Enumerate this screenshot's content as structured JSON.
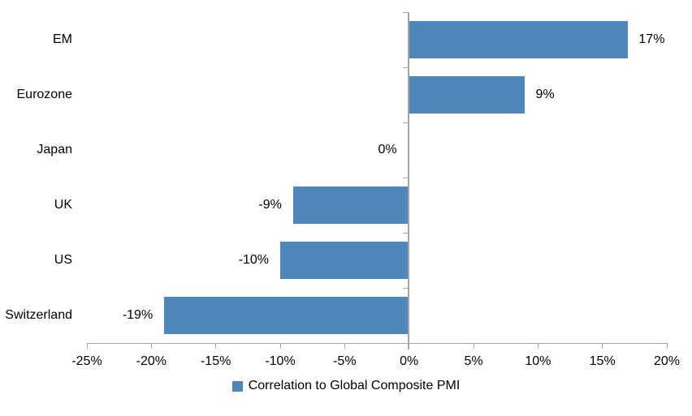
{
  "chart_data": {
    "type": "bar",
    "orientation": "horizontal",
    "categories": [
      "EM",
      "Eurozone",
      "Japan",
      "UK",
      "US",
      "Switzerland"
    ],
    "values": [
      17,
      9,
      0,
      -9,
      -10,
      -19
    ],
    "value_labels": [
      "17%",
      "9%",
      "0%",
      "-9%",
      "-10%",
      "-19%"
    ],
    "xlim": [
      -25,
      20
    ],
    "x_tick_step": 5,
    "x_tick_labels": [
      "-25%",
      "-20%",
      "-15%",
      "-10%",
      "-5%",
      "0%",
      "5%",
      "10%",
      "15%",
      "20%"
    ],
    "grid": false,
    "bar_color": "#4F86BC",
    "axis_color": "#A6A6A6",
    "legend_position": "bottom-center",
    "legend": [
      {
        "label": "Correlation to Global Composite PMI",
        "color": "#4F86BC"
      }
    ]
  }
}
